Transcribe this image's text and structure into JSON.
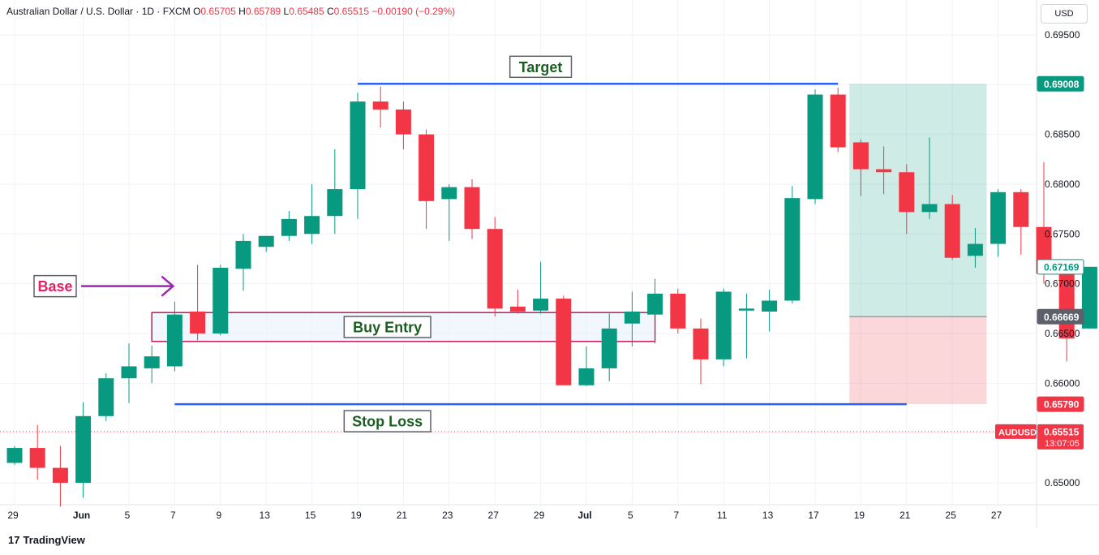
{
  "header": {
    "symbol": "Australian Dollar / U.S. Dollar · 1D · FXCM",
    "open_label": "O",
    "open": "0.65705",
    "high_label": "H",
    "high": "0.65789",
    "low_label": "L",
    "low": "0.65485",
    "close_label": "C",
    "close": "0.65515",
    "change": "−0.00190 (−0.29%)"
  },
  "currency_button": "USD",
  "branding": "TradingView",
  "colors": {
    "up": "#089981",
    "down": "#f23645",
    "level": "#2962ff",
    "zone": "#c2185b",
    "base_arrow": "#9c27b0",
    "label_text": "#1b5e20"
  },
  "chart_data": {
    "type": "candlestick",
    "y_ticks": [
      "0.69500",
      "0.69000",
      "0.68500",
      "0.68000",
      "0.67500",
      "0.67000",
      "0.66500",
      "0.66000",
      "0.65500",
      "0.65000"
    ],
    "y_tick_values": [
      0.695,
      0.69,
      0.685,
      0.68,
      0.675,
      0.67,
      0.665,
      0.66,
      0.655,
      0.65
    ],
    "ylim": [
      0.6478,
      0.6985
    ],
    "x_tick_labels": [
      "29",
      "Jun",
      "5",
      "7",
      "9",
      "13",
      "15",
      "19",
      "21",
      "23",
      "27",
      "29",
      "Jul",
      "5",
      "7",
      "11",
      "13",
      "17",
      "19",
      "21",
      "25",
      "27"
    ],
    "x_tick_index": [
      0,
      3,
      5,
      7,
      9,
      11,
      13,
      15,
      17,
      19,
      21,
      23,
      25,
      27,
      29,
      31,
      33,
      35,
      37,
      39,
      41,
      43
    ],
    "candles": [
      {
        "o": 0.652,
        "h": 0.6537,
        "l": 0.6518,
        "c": 0.6535
      },
      {
        "o": 0.6535,
        "h": 0.6558,
        "l": 0.6503,
        "c": 0.6515
      },
      {
        "o": 0.6515,
        "h": 0.6537,
        "l": 0.6476,
        "c": 0.65
      },
      {
        "o": 0.65,
        "h": 0.6581,
        "l": 0.6485,
        "c": 0.6567
      },
      {
        "o": 0.6567,
        "h": 0.661,
        "l": 0.6562,
        "c": 0.6605
      },
      {
        "o": 0.6605,
        "h": 0.664,
        "l": 0.658,
        "c": 0.6617
      },
      {
        "o": 0.6615,
        "h": 0.6638,
        "l": 0.66,
        "c": 0.6627
      },
      {
        "o": 0.6617,
        "h": 0.6682,
        "l": 0.6612,
        "c": 0.6669
      },
      {
        "o": 0.6672,
        "h": 0.6719,
        "l": 0.6643,
        "c": 0.665
      },
      {
        "o": 0.665,
        "h": 0.6719,
        "l": 0.6648,
        "c": 0.6716
      },
      {
        "o": 0.6715,
        "h": 0.675,
        "l": 0.6693,
        "c": 0.6743
      },
      {
        "o": 0.6737,
        "h": 0.6748,
        "l": 0.6732,
        "c": 0.6748
      },
      {
        "o": 0.6748,
        "h": 0.6773,
        "l": 0.6743,
        "c": 0.6765
      },
      {
        "o": 0.675,
        "h": 0.68,
        "l": 0.674,
        "c": 0.6768
      },
      {
        "o": 0.6768,
        "h": 0.6835,
        "l": 0.675,
        "c": 0.6795
      },
      {
        "o": 0.6795,
        "h": 0.6892,
        "l": 0.6765,
        "c": 0.6883
      },
      {
        "o": 0.6883,
        "h": 0.6898,
        "l": 0.6857,
        "c": 0.6875
      },
      {
        "o": 0.6875,
        "h": 0.6883,
        "l": 0.6835,
        "c": 0.685
      },
      {
        "o": 0.685,
        "h": 0.6855,
        "l": 0.6755,
        "c": 0.6783
      },
      {
        "o": 0.6785,
        "h": 0.68,
        "l": 0.6743,
        "c": 0.6797
      },
      {
        "o": 0.6797,
        "h": 0.6805,
        "l": 0.6745,
        "c": 0.6755
      },
      {
        "o": 0.6755,
        "h": 0.6767,
        "l": 0.6667,
        "c": 0.6675
      },
      {
        "o": 0.6677,
        "h": 0.6694,
        "l": 0.667,
        "c": 0.6672
      },
      {
        "o": 0.6673,
        "h": 0.6722,
        "l": 0.667,
        "c": 0.6685
      },
      {
        "o": 0.6685,
        "h": 0.6688,
        "l": 0.6598,
        "c": 0.6598
      },
      {
        "o": 0.6598,
        "h": 0.6637,
        "l": 0.6597,
        "c": 0.6615
      },
      {
        "o": 0.6615,
        "h": 0.667,
        "l": 0.6602,
        "c": 0.6655
      },
      {
        "o": 0.666,
        "h": 0.6692,
        "l": 0.6637,
        "c": 0.6672
      },
      {
        "o": 0.6669,
        "h": 0.6705,
        "l": 0.664,
        "c": 0.669
      },
      {
        "o": 0.669,
        "h": 0.6695,
        "l": 0.665,
        "c": 0.6655
      },
      {
        "o": 0.6655,
        "h": 0.6665,
        "l": 0.6599,
        "c": 0.6624
      },
      {
        "o": 0.6624,
        "h": 0.6695,
        "l": 0.6617,
        "c": 0.6692
      },
      {
        "o": 0.6673,
        "h": 0.669,
        "l": 0.6625,
        "c": 0.6675
      },
      {
        "o": 0.6672,
        "h": 0.6694,
        "l": 0.6652,
        "c": 0.6683
      },
      {
        "o": 0.6683,
        "h": 0.6798,
        "l": 0.668,
        "c": 0.6786
      },
      {
        "o": 0.6785,
        "h": 0.6895,
        "l": 0.678,
        "c": 0.689
      },
      {
        "o": 0.689,
        "h": 0.6897,
        "l": 0.6832,
        "c": 0.6837
      },
      {
        "o": 0.6842,
        "h": 0.6845,
        "l": 0.6788,
        "c": 0.6815
      },
      {
        "o": 0.6815,
        "h": 0.6838,
        "l": 0.679,
        "c": 0.6812
      },
      {
        "o": 0.6812,
        "h": 0.682,
        "l": 0.675,
        "c": 0.6772
      },
      {
        "o": 0.6772,
        "h": 0.6847,
        "l": 0.6765,
        "c": 0.678
      },
      {
        "o": 0.678,
        "h": 0.6789,
        "l": 0.6724,
        "c": 0.6726
      },
      {
        "o": 0.6728,
        "h": 0.6756,
        "l": 0.6716,
        "c": 0.674
      },
      {
        "o": 0.674,
        "h": 0.6795,
        "l": 0.6727,
        "c": 0.6792
      },
      {
        "o": 0.6792,
        "h": 0.6795,
        "l": 0.6729,
        "c": 0.6757
      },
      {
        "o": 0.6757,
        "h": 0.6822,
        "l": 0.67,
        "c": 0.671
      },
      {
        "o": 0.671,
        "h": 0.6713,
        "l": 0.6622,
        "c": 0.6645
      },
      {
        "o": 0.6655,
        "h": 0.6717,
        "l": 0.6655,
        "c": 0.6717
      }
    ],
    "levels": {
      "target": {
        "label": "Target",
        "price": 0.69008,
        "start": 15,
        "end": 36
      },
      "stop_loss": {
        "label": "Stop Loss",
        "price": 0.6579,
        "start": 7,
        "end": 39
      },
      "buy_entry": {
        "label": "Buy Entry",
        "high": 0.6671,
        "low": 0.6642,
        "start": 6,
        "end": 28
      },
      "base": {
        "label": "Base",
        "price": 0.67,
        "index": 7
      }
    },
    "position": {
      "entry": 0.66669,
      "target": 0.69008,
      "stop": 0.6579,
      "start": 36.5,
      "end": 42.5
    },
    "price_badges": [
      {
        "text": "0.69008",
        "value": 0.69008,
        "bg": "#089981",
        "fg": "#ffffff",
        "border": "#089981"
      },
      {
        "text": "0.67169",
        "value": 0.67169,
        "bg": "#ffffff",
        "fg": "#089981",
        "border": "#089981"
      },
      {
        "text": "0.66669",
        "value": 0.66669,
        "bg": "#5d606b",
        "fg": "#ffffff",
        "border": "#5d606b"
      },
      {
        "text": "0.65790",
        "value": 0.6579,
        "bg": "#f23645",
        "fg": "#ffffff",
        "border": "#f23645"
      }
    ],
    "last_price": {
      "symbol": "AUDUSD",
      "price": "0.65515",
      "countdown": "13:07:05",
      "value": 0.65515
    }
  }
}
